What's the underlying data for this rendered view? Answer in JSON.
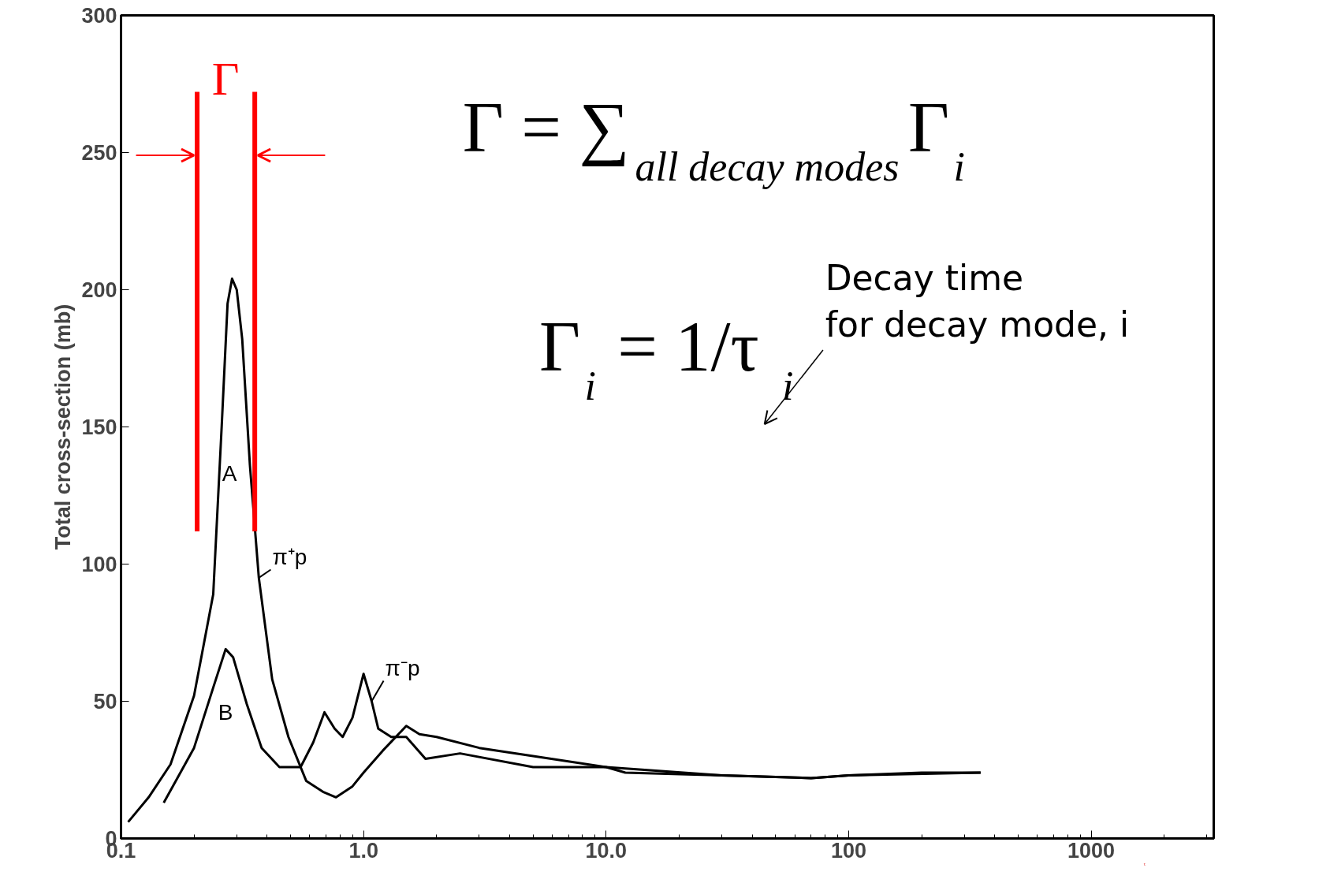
{
  "chart_data": {
    "type": "line",
    "ylabel": "Total cross-section (mb)",
    "xlim": [
      0.1,
      3200
    ],
    "ylim": [
      0,
      300
    ],
    "log": "x",
    "grid": false,
    "marker": "none",
    "line_style": "solid",
    "xticks": [
      {
        "value": 0.1,
        "label": "0.1"
      },
      {
        "value": 1,
        "label": "1.0"
      },
      {
        "value": 10,
        "label": "10.0"
      },
      {
        "value": 100,
        "label": "100"
      },
      {
        "value": 1000,
        "label": "1000"
      }
    ],
    "yticks": [
      0,
      50,
      100,
      150,
      200,
      250,
      300
    ],
    "series": [
      {
        "name": "π⁺p",
        "color": "#000000",
        "x": [
          0.107,
          0.13,
          0.16,
          0.2,
          0.24,
          0.26,
          0.275,
          0.287,
          0.3,
          0.316,
          0.34,
          0.37,
          0.42,
          0.49,
          0.58,
          0.68,
          0.77,
          0.9,
          1.0,
          1.2,
          1.5,
          1.7,
          2.0,
          3.0,
          5.0,
          10,
          12,
          30,
          70,
          100,
          200,
          350
        ],
        "values": [
          6,
          15,
          27,
          52,
          89,
          150,
          195,
          204,
          200,
          182,
          136,
          95,
          58,
          37,
          21,
          17,
          15,
          19,
          24,
          32,
          41,
          38,
          37,
          33,
          30,
          26,
          24,
          23,
          22,
          23,
          24,
          24
        ]
      },
      {
        "name": "π⁻p",
        "color": "#000000",
        "x": [
          0.15,
          0.2,
          0.24,
          0.27,
          0.29,
          0.33,
          0.38,
          0.45,
          0.55,
          0.62,
          0.69,
          0.76,
          0.82,
          0.9,
          1.0,
          1.08,
          1.15,
          1.3,
          1.5,
          1.8,
          2.5,
          5,
          10,
          30,
          70,
          100,
          350
        ],
        "values": [
          13,
          33,
          55,
          69,
          66,
          49,
          33,
          26,
          26,
          35,
          46,
          40,
          37,
          44,
          60,
          50,
          40,
          37,
          37,
          29,
          31,
          26,
          26,
          23,
          22,
          23,
          24
        ]
      }
    ],
    "ref_lines": [
      {
        "axis": "x",
        "value": 0.206,
        "color": "#ff0000"
      },
      {
        "axis": "x",
        "value": 0.356,
        "color": "#ff0000"
      }
    ],
    "annotations": [
      "Γ = ∑$_{all decay modes}$Γ$_{i}$",
      "Γ$_{i}$ = 1/τ$_{i}$",
      "Decay time\nfor decay mode, i",
      "Γ",
      "A",
      "B"
    ]
  }
}
